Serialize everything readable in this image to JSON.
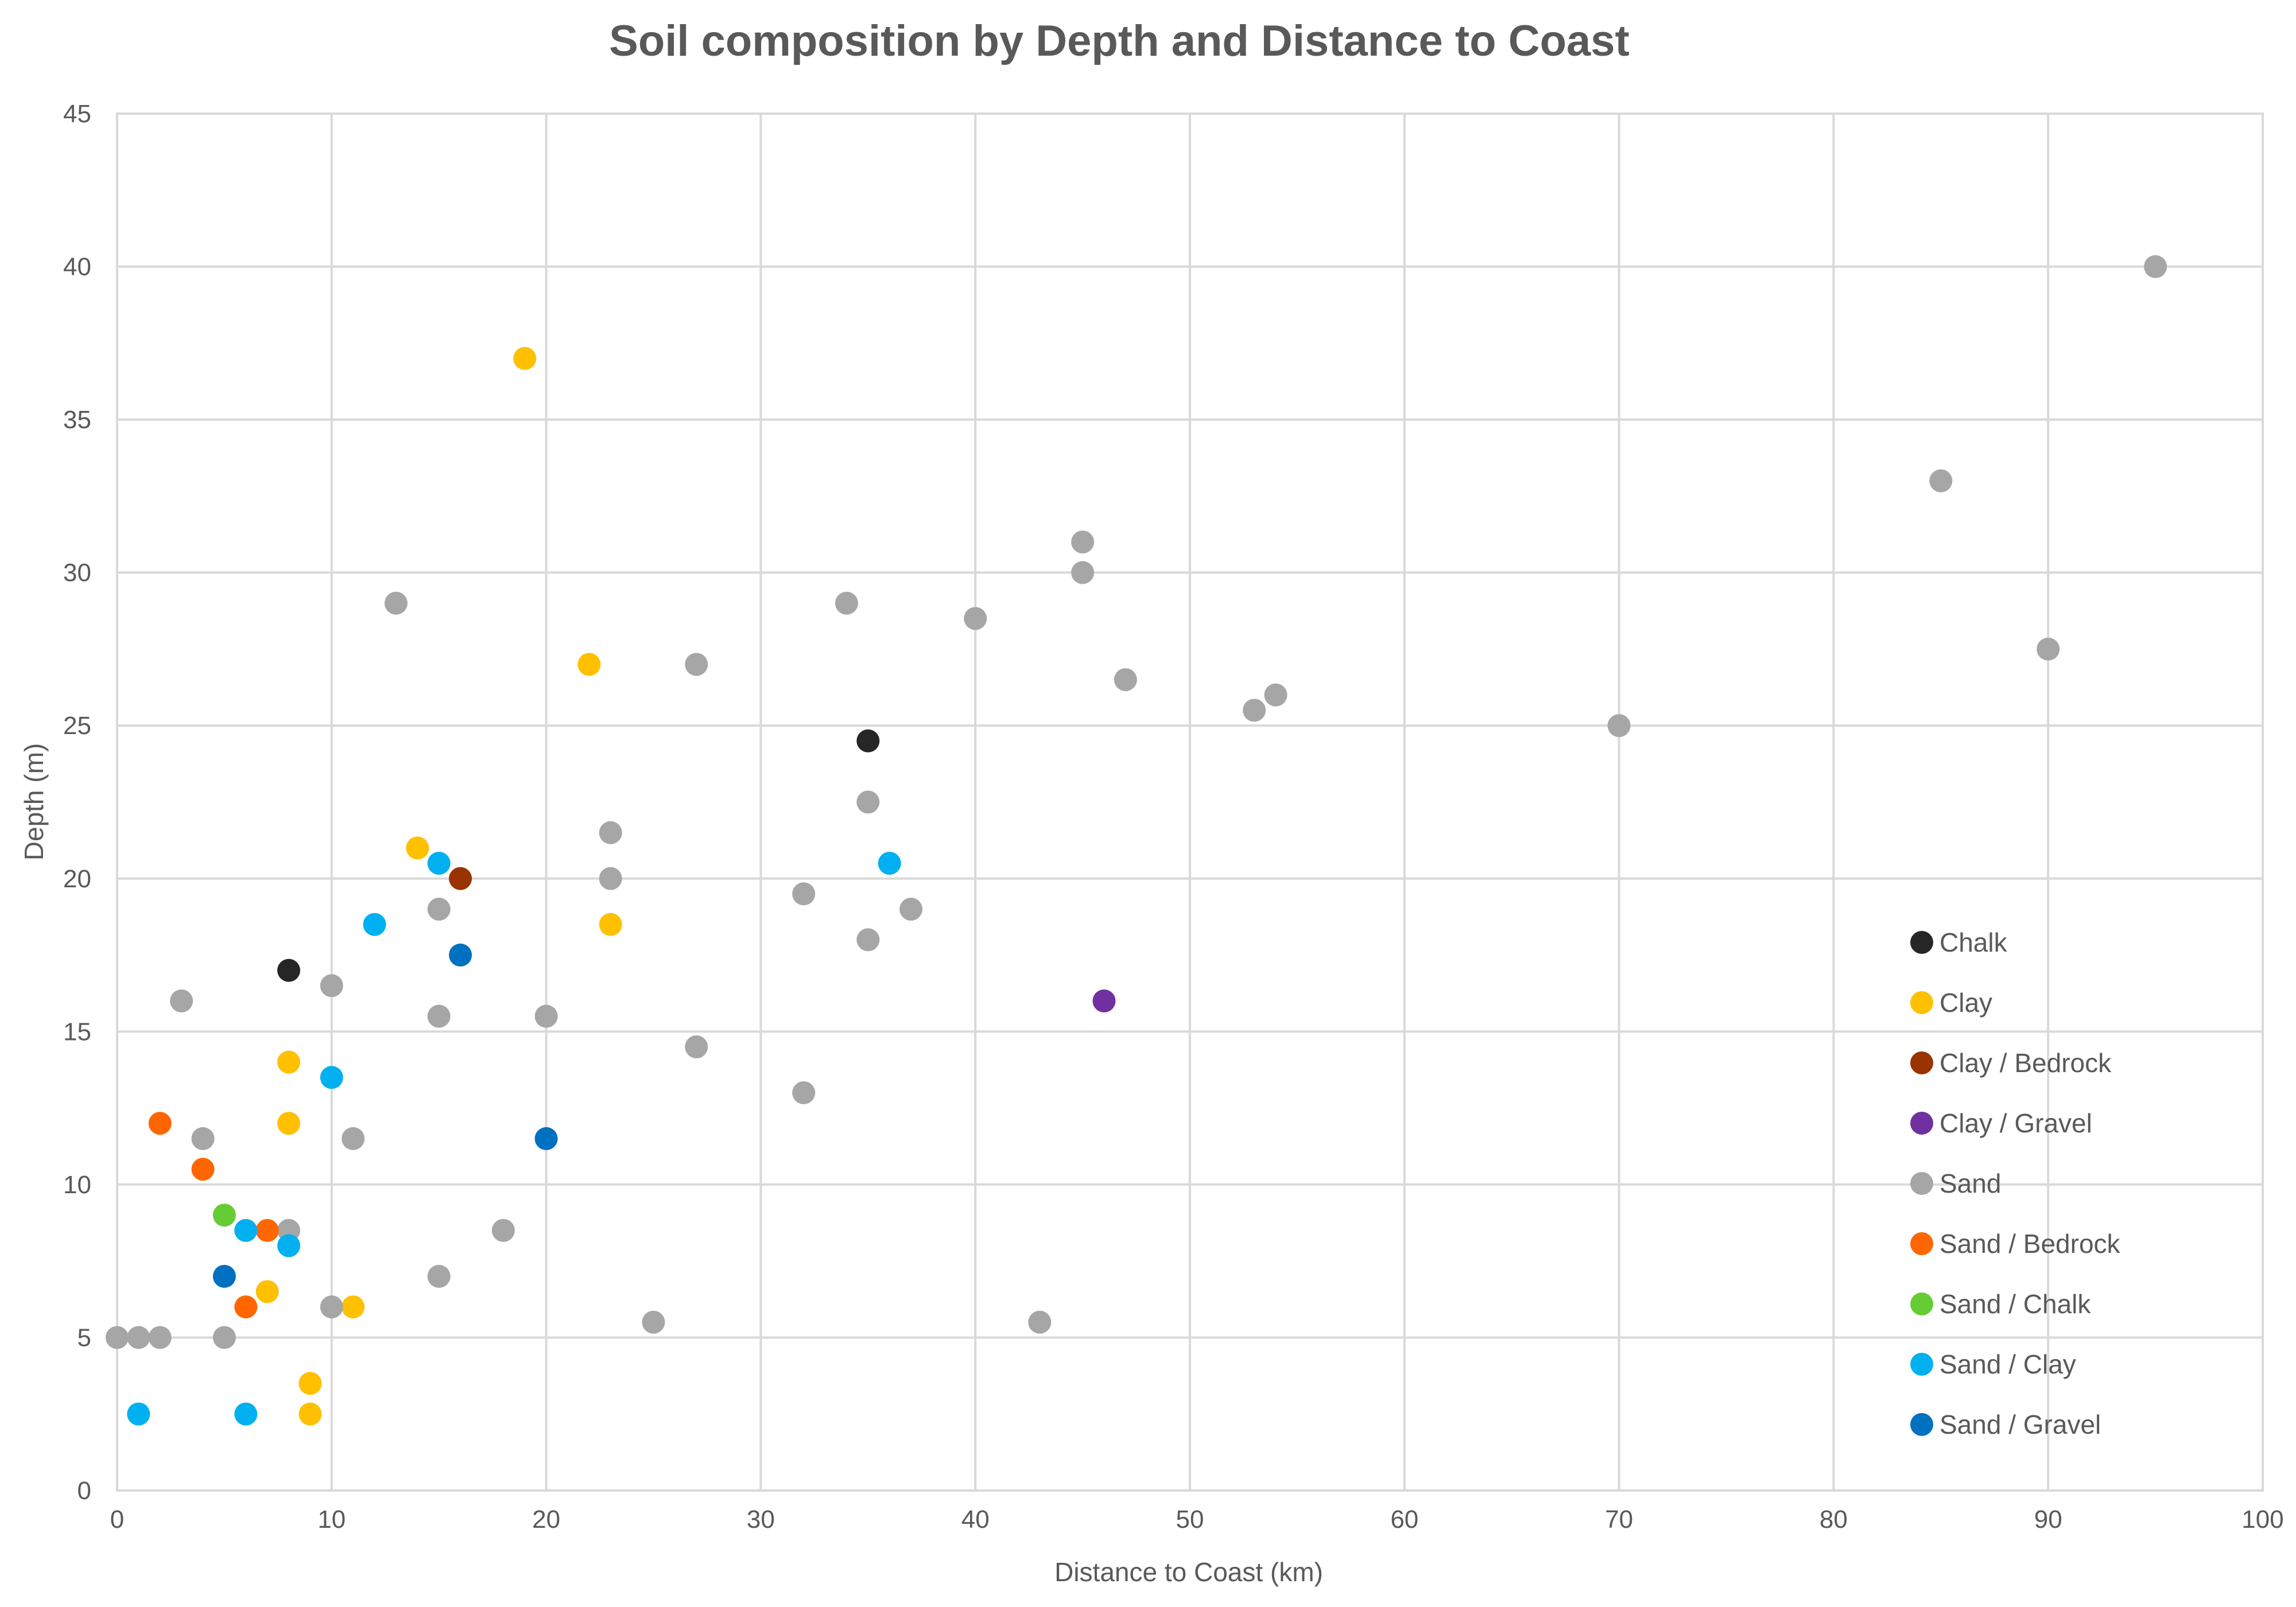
{
  "chart_data": {
    "type": "scatter",
    "title": "Soil composition by Depth and Distance to Coast",
    "xlabel": "Distance to Coast (km)",
    "ylabel": "Depth (m)",
    "xlim": [
      0,
      100
    ],
    "ylim": [
      0,
      45
    ],
    "x_ticks": [
      "0",
      "10",
      "20",
      "30",
      "40",
      "50",
      "60",
      "70",
      "80",
      "90",
      "100"
    ],
    "y_ticks": [
      "0",
      "5",
      "10",
      "15",
      "20",
      "25",
      "30",
      "35",
      "40",
      "45"
    ],
    "grid": true,
    "legend_position": "right",
    "series": [
      {
        "name": "Chalk",
        "color": "#262626",
        "points": [
          [
            8,
            17
          ],
          [
            35,
            24.5
          ]
        ]
      },
      {
        "name": "Clay",
        "color": "#ffc000",
        "points": [
          [
            19,
            37
          ],
          [
            22,
            27
          ],
          [
            14,
            21
          ],
          [
            23,
            18.5
          ],
          [
            8,
            14
          ],
          [
            8,
            12
          ],
          [
            7,
            6.5
          ],
          [
            11,
            6
          ],
          [
            9,
            3.5
          ],
          [
            9,
            2.5
          ]
        ]
      },
      {
        "name": "Clay / Bedrock",
        "color": "#993300",
        "points": [
          [
            16,
            20
          ]
        ]
      },
      {
        "name": "Clay / Gravel",
        "color": "#7030a0",
        "points": [
          [
            46,
            16
          ]
        ]
      },
      {
        "name": "Sand",
        "color": "#a6a6a6",
        "points": [
          [
            95,
            40
          ],
          [
            85,
            33
          ],
          [
            45,
            31
          ],
          [
            45,
            30
          ],
          [
            13,
            29
          ],
          [
            34,
            29
          ],
          [
            40,
            28.5
          ],
          [
            90,
            27.5
          ],
          [
            27,
            27
          ],
          [
            47,
            26.5
          ],
          [
            54,
            26
          ],
          [
            53,
            25.5
          ],
          [
            70,
            25
          ],
          [
            35,
            22.5
          ],
          [
            23,
            21.5
          ],
          [
            23,
            20
          ],
          [
            32,
            19.5
          ],
          [
            15,
            19
          ],
          [
            37,
            19
          ],
          [
            35,
            18
          ],
          [
            10,
            16.5
          ],
          [
            3,
            16
          ],
          [
            15,
            15.5
          ],
          [
            20,
            15.5
          ],
          [
            27,
            14.5
          ],
          [
            32,
            13
          ],
          [
            4,
            11.5
          ],
          [
            11,
            11.5
          ],
          [
            8,
            8.5
          ],
          [
            18,
            8.5
          ],
          [
            15,
            7
          ],
          [
            10,
            6
          ],
          [
            25,
            5.5
          ],
          [
            43,
            5.5
          ],
          [
            0,
            5
          ],
          [
            1,
            5
          ],
          [
            2,
            5
          ],
          [
            5,
            5
          ]
        ]
      },
      {
        "name": "Sand / Bedrock",
        "color": "#ff6600",
        "points": [
          [
            2,
            12
          ],
          [
            4,
            10.5
          ],
          [
            7,
            8.5
          ],
          [
            6,
            6
          ]
        ]
      },
      {
        "name": "Sand / Chalk",
        "color": "#66cc33",
        "points": [
          [
            5,
            9
          ]
        ]
      },
      {
        "name": "Sand / Clay",
        "color": "#00b0f0",
        "points": [
          [
            15,
            20.5
          ],
          [
            36,
            20.5
          ],
          [
            12,
            18.5
          ],
          [
            10,
            13.5
          ],
          [
            6,
            8.5
          ],
          [
            8,
            8
          ],
          [
            1,
            2.5
          ],
          [
            6,
            2.5
          ]
        ]
      },
      {
        "name": "Sand / Gravel",
        "color": "#0070c0",
        "points": [
          [
            16,
            17.5
          ],
          [
            20,
            11.5
          ],
          [
            5,
            7
          ]
        ]
      }
    ]
  }
}
